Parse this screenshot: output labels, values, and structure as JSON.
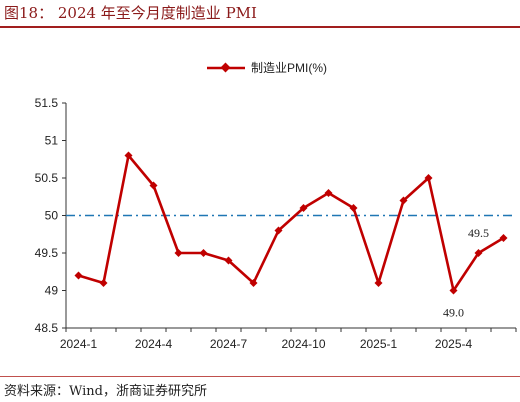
{
  "figure": {
    "title": "图18： 2024 年至今月度制造业 PMI",
    "source": "资料来源：Wind，浙商证券研究所"
  },
  "colors": {
    "series": "#c00000",
    "reference": "#1f77b4",
    "title": "#8b1a1a",
    "rule": "#a11e1e"
  },
  "chart_data": {
    "type": "line",
    "series": [
      {
        "name": "制造业PMI(%)",
        "values": [
          49.2,
          49.1,
          50.8,
          50.4,
          49.5,
          49.5,
          49.4,
          49.1,
          49.8,
          50.1,
          50.3,
          50.1,
          49.1,
          50.2,
          50.5,
          49.0,
          49.5,
          49.7
        ]
      }
    ],
    "x": [
      "2024-1",
      "2024-2",
      "2024-3",
      "2024-4",
      "2024-5",
      "2024-6",
      "2024-7",
      "2024-8",
      "2024-9",
      "2024-10",
      "2024-11",
      "2024-12",
      "2025-1",
      "2025-2",
      "2025-3",
      "2025-4",
      "2025-5",
      "2025-6"
    ],
    "x_tick_labels": [
      "2024-1",
      "2024-4",
      "2024-7",
      "2024-10",
      "2025-1",
      "2025-4"
    ],
    "y_tick_labels": [
      "48.5",
      "49",
      "49.5",
      "50",
      "50.5",
      "51",
      "51.5"
    ],
    "ylim": [
      48.5,
      51.5
    ],
    "reference_line": 50,
    "annotations": [
      {
        "label": "49.0",
        "index": 15
      },
      {
        "label": "49.5",
        "index": 16
      }
    ],
    "legend_position": "top-center",
    "grid": false
  }
}
